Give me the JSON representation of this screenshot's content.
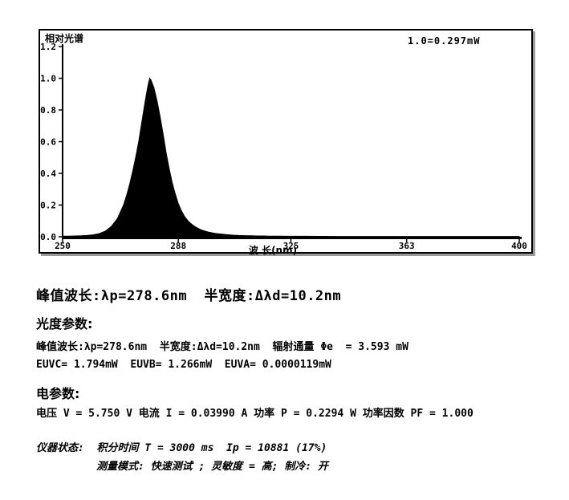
{
  "chart_data": {
    "type": "area",
    "title": "相对光谱",
    "ylabel": "相对光谱",
    "xlabel": "波 长(nm)",
    "annotation": "1.0=0.297mW",
    "xlim": [
      250,
      400
    ],
    "ylim": [
      0,
      1.2
    ],
    "x_ticks": [
      250,
      288,
      325,
      363,
      400
    ],
    "y_ticks": [
      0.0,
      0.2,
      0.4,
      0.6,
      0.8,
      1.0,
      1.2
    ],
    "grid": false,
    "legend": "none",
    "series_color": "#000000",
    "peak_wavelength_nm": 278.6,
    "fwhm_nm": 10.2,
    "points": [
      [
        250,
        0.004
      ],
      [
        252,
        0.004
      ],
      [
        254,
        0.005
      ],
      [
        256,
        0.006
      ],
      [
        258,
        0.008
      ],
      [
        260,
        0.012
      ],
      [
        262,
        0.02
      ],
      [
        264,
        0.035
      ],
      [
        266,
        0.065
      ],
      [
        268,
        0.115
      ],
      [
        270,
        0.2
      ],
      [
        271,
        0.26
      ],
      [
        272,
        0.33
      ],
      [
        273,
        0.41
      ],
      [
        274,
        0.5
      ],
      [
        275,
        0.6
      ],
      [
        276,
        0.72
      ],
      [
        277,
        0.84
      ],
      [
        278,
        0.95
      ],
      [
        278.6,
        1.0
      ],
      [
        279,
        0.99
      ],
      [
        280,
        0.94
      ],
      [
        281,
        0.86
      ],
      [
        282,
        0.76
      ],
      [
        283,
        0.65
      ],
      [
        284,
        0.53
      ],
      [
        285,
        0.43
      ],
      [
        286,
        0.34
      ],
      [
        287,
        0.27
      ],
      [
        288,
        0.21
      ],
      [
        289,
        0.165
      ],
      [
        290,
        0.13
      ],
      [
        291,
        0.105
      ],
      [
        292,
        0.085
      ],
      [
        293,
        0.07
      ],
      [
        294,
        0.058
      ],
      [
        295,
        0.048
      ],
      [
        296,
        0.04
      ],
      [
        298,
        0.029
      ],
      [
        300,
        0.022
      ],
      [
        302,
        0.017
      ],
      [
        304,
        0.013
      ],
      [
        306,
        0.01
      ],
      [
        308,
        0.008
      ],
      [
        310,
        0.007
      ],
      [
        312,
        0.006
      ],
      [
        314,
        0.005
      ],
      [
        316,
        0.005
      ],
      [
        318,
        0.004
      ],
      [
        320,
        0.004
      ],
      [
        325,
        0.003
      ],
      [
        330,
        0.003
      ],
      [
        340,
        0.002
      ],
      [
        350,
        0.002
      ],
      [
        360,
        0.002
      ],
      [
        370,
        0.002
      ],
      [
        380,
        0.002
      ],
      [
        390,
        0.002
      ],
      [
        400,
        0.002
      ]
    ]
  },
  "results": {
    "headline": "峰值波长:λp=278.6nm  半宽度:Δλd=10.2nm",
    "photometric_heading": "光度参数:",
    "photometric_line1": "峰值波长:λp=278.6nm  半宽度:Δλd=10.2nm  辐射通量 Φe  = 3.593 mW",
    "photometric_line2": "EUVC= 1.794mW  EUVB= 1.266mW  EUVA= 0.0000119mW",
    "electrical_heading": "电参数:",
    "electrical_line": "电压 V = 5.750 V 电流 I = 0.03990 A 功率 P = 0.2294 W 功率因数 PF = 1.000",
    "status_line1": "仪器状态:  积分时间 T = 3000 ms  Ip = 10881 (17%)",
    "status_line2": "测量模式: 快速测试 ; 灵敏度 = 高; 制冷: 开"
  }
}
